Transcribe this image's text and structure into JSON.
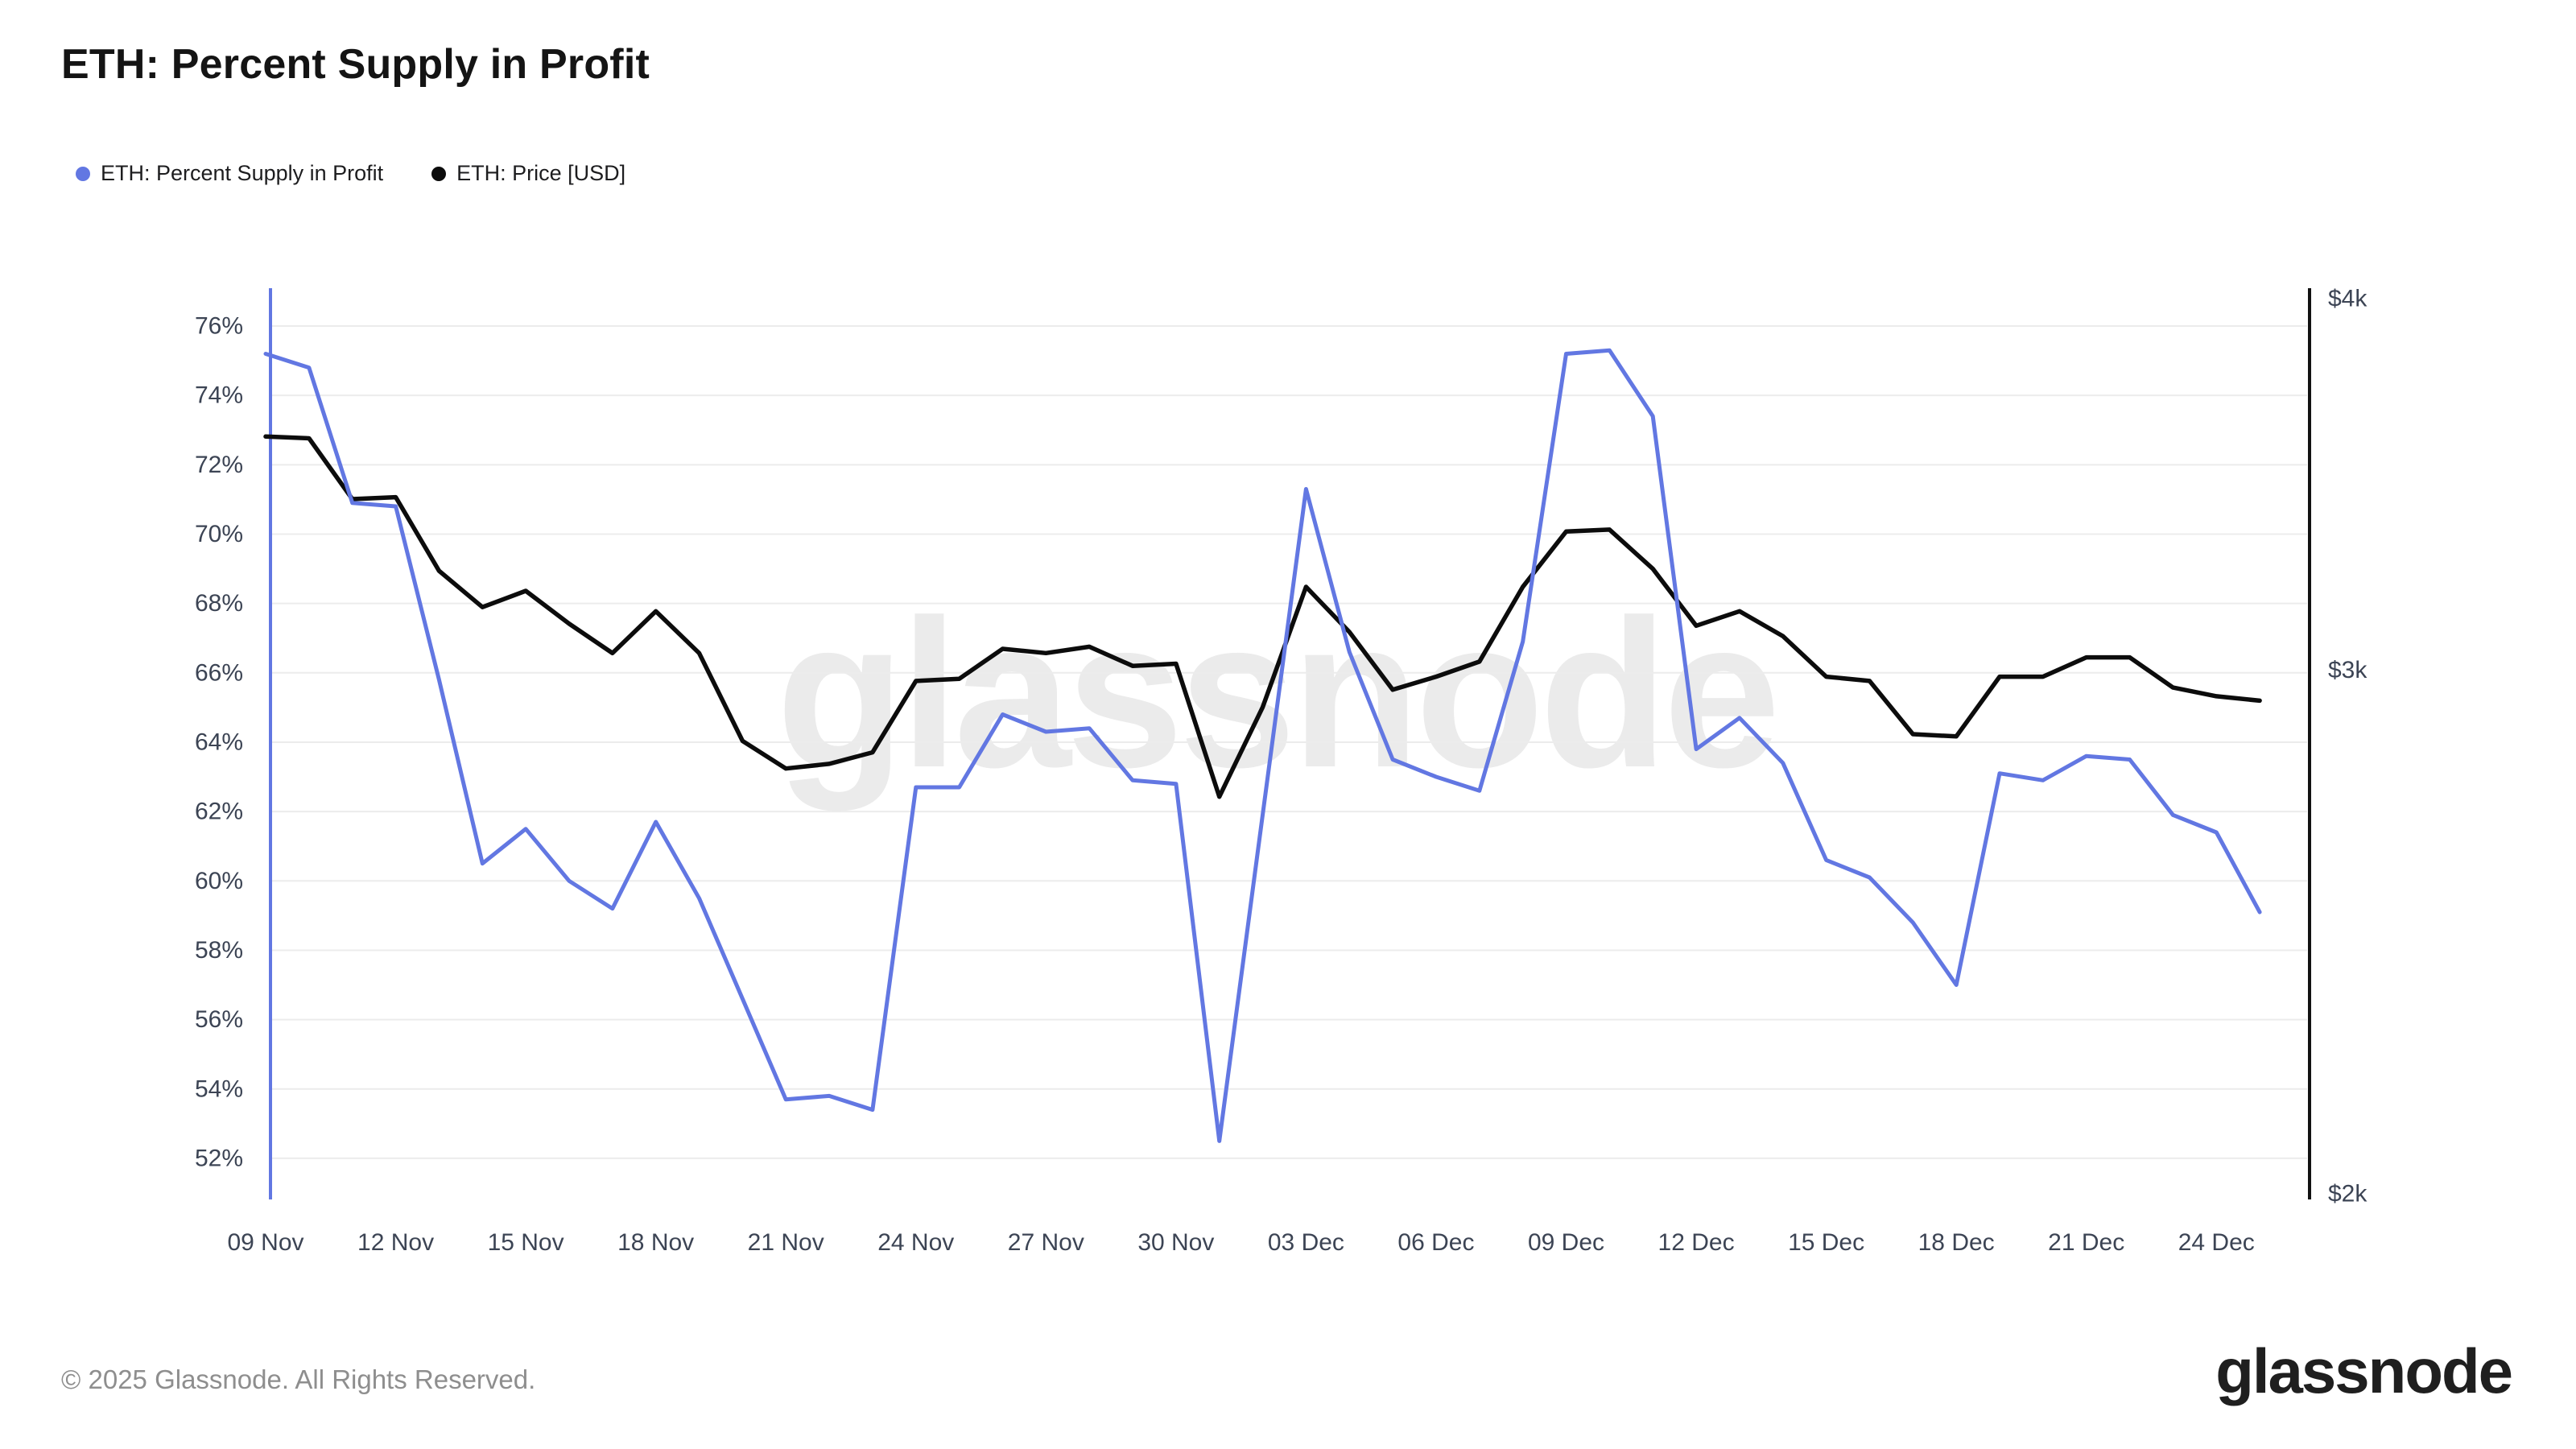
{
  "header": {
    "title": "ETH: Percent Supply in Profit"
  },
  "legend": {
    "items": [
      {
        "label": "ETH: Percent Supply in Profit",
        "color": "#6277e2"
      },
      {
        "label": "ETH: Price [USD]",
        "color": "#0c0c0c"
      }
    ]
  },
  "chart_data": {
    "type": "line",
    "title": "ETH: Percent Supply in Profit",
    "watermark": "glassnode",
    "x": [
      "09 Nov",
      "10 Nov",
      "11 Nov",
      "12 Nov",
      "13 Nov",
      "14 Nov",
      "15 Nov",
      "16 Nov",
      "17 Nov",
      "18 Nov",
      "19 Nov",
      "20 Nov",
      "21 Nov",
      "22 Nov",
      "23 Nov",
      "24 Nov",
      "25 Nov",
      "26 Nov",
      "27 Nov",
      "28 Nov",
      "29 Nov",
      "30 Nov",
      "01 Dec",
      "02 Dec",
      "03 Dec",
      "04 Dec",
      "05 Dec",
      "06 Dec",
      "07 Dec",
      "08 Dec",
      "09 Dec",
      "10 Dec",
      "11 Dec",
      "12 Dec",
      "13 Dec",
      "14 Dec",
      "15 Dec",
      "16 Dec",
      "17 Dec",
      "18 Dec",
      "19 Dec",
      "20 Dec",
      "21 Dec",
      "22 Dec",
      "23 Dec",
      "24 Dec",
      "25 Dec"
    ],
    "x_tick_labels": [
      "09 Nov",
      "12 Nov",
      "15 Nov",
      "18 Nov",
      "21 Nov",
      "24 Nov",
      "27 Nov",
      "30 Nov",
      "03 Dec",
      "06 Dec",
      "09 Dec",
      "12 Dec",
      "15 Dec",
      "18 Dec",
      "21 Dec",
      "24 Dec"
    ],
    "series": [
      {
        "name": "ETH: Percent Supply in Profit",
        "axis": "left",
        "unit": "%",
        "color": "#6277e2",
        "values": [
          75.2,
          74.8,
          70.9,
          70.8,
          65.8,
          60.5,
          61.5,
          60.0,
          59.2,
          61.7,
          59.5,
          56.6,
          53.7,
          53.8,
          53.4,
          62.7,
          62.7,
          64.8,
          64.3,
          64.4,
          62.9,
          62.8,
          52.5,
          61.9,
          71.3,
          66.6,
          63.5,
          63.0,
          62.6,
          66.9,
          75.2,
          75.3,
          73.4,
          63.8,
          64.7,
          63.4,
          60.6,
          60.1,
          58.8,
          57.0,
          63.1,
          62.9,
          63.6,
          63.5,
          61.9,
          61.4,
          59.1
        ]
      },
      {
        "name": "ETH: Price [USD]",
        "axis": "right",
        "unit": "USD",
        "color": "#0c0c0c",
        "values": [
          3595,
          3590,
          3425,
          3430,
          3240,
          3150,
          3190,
          3110,
          3040,
          3140,
          3040,
          2840,
          2780,
          2790,
          2815,
          2975,
          2980,
          3050,
          3040,
          3055,
          3010,
          3015,
          2720,
          2915,
          3200,
          3090,
          2955,
          2985,
          3020,
          3200,
          3340,
          3345,
          3245,
          3105,
          3140,
          3080,
          2985,
          2975,
          2855,
          2850,
          2985,
          2985,
          3030,
          3030,
          2960,
          2940,
          2930
        ]
      }
    ],
    "left_axis": {
      "ticks": [
        76,
        74,
        72,
        70,
        68,
        66,
        64,
        62,
        60,
        58,
        56,
        54,
        52
      ],
      "tick_suffix": "%",
      "min": 51.5,
      "max": 77,
      "grid": true
    },
    "right_axis": {
      "ticks": [
        4000,
        3000,
        2000
      ],
      "tick_labels": [
        "$4k",
        "$3k",
        "$2k"
      ],
      "scale": "log",
      "min": 2000,
      "max": 4000,
      "grid": false
    },
    "legend_position": "top-left"
  },
  "footer": {
    "copyright": "© 2025 Glassnode. All Rights Reserved.",
    "logo_text": "glassnode"
  },
  "colors": {
    "grid": "#ececec",
    "tick_text": "#3c4454",
    "watermark": "#ebebeb",
    "left_axis_line": "#6277e2",
    "right_axis_line": "#111111"
  }
}
